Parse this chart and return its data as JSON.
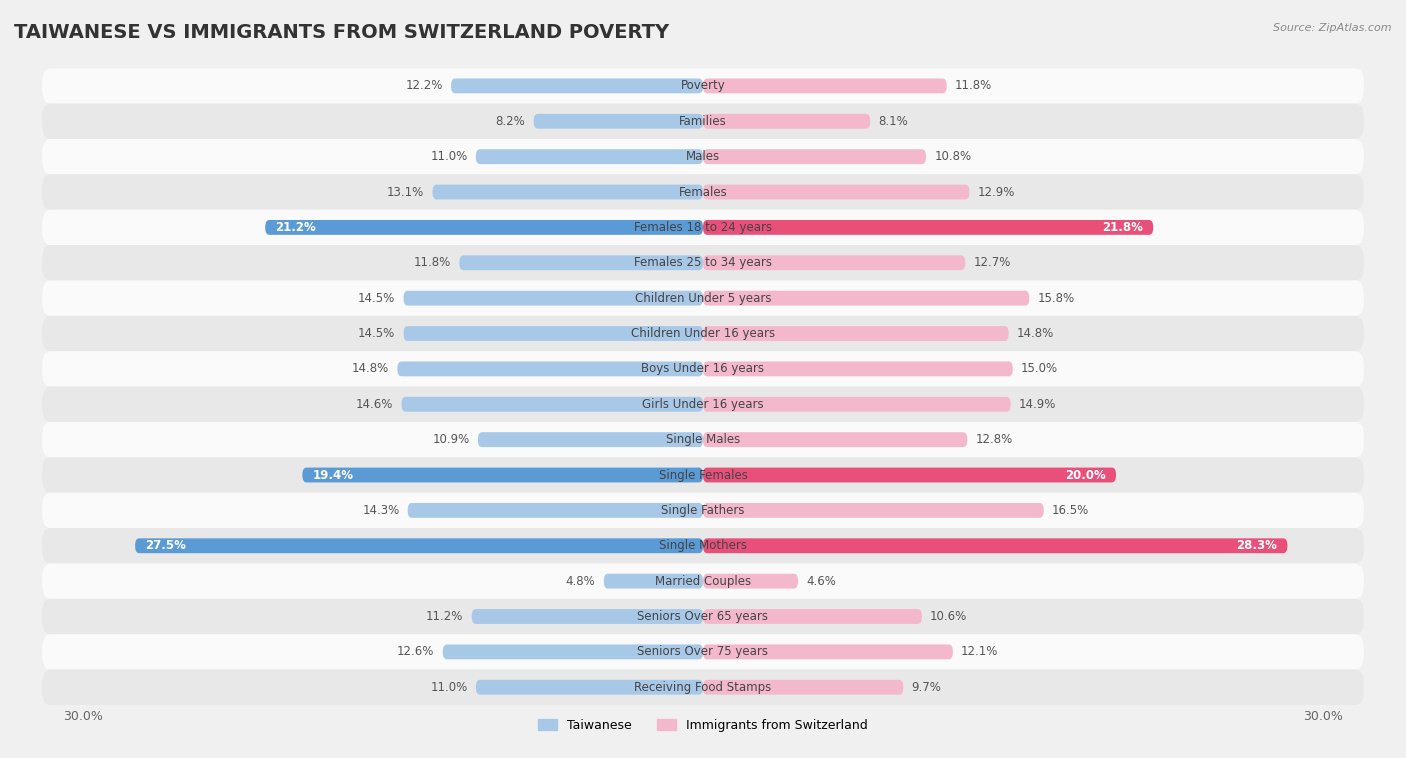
{
  "title": "TAIWANESE VS IMMIGRANTS FROM SWITZERLAND POVERTY",
  "source": "Source: ZipAtlas.com",
  "categories": [
    "Poverty",
    "Families",
    "Males",
    "Females",
    "Females 18 to 24 years",
    "Females 25 to 34 years",
    "Children Under 5 years",
    "Children Under 16 years",
    "Boys Under 16 years",
    "Girls Under 16 years",
    "Single Males",
    "Single Females",
    "Single Fathers",
    "Single Mothers",
    "Married Couples",
    "Seniors Over 65 years",
    "Seniors Over 75 years",
    "Receiving Food Stamps"
  ],
  "taiwanese": [
    12.2,
    8.2,
    11.0,
    13.1,
    21.2,
    11.8,
    14.5,
    14.5,
    14.8,
    14.6,
    10.9,
    19.4,
    14.3,
    27.5,
    4.8,
    11.2,
    12.6,
    11.0
  ],
  "immigrants": [
    11.8,
    8.1,
    10.8,
    12.9,
    21.8,
    12.7,
    15.8,
    14.8,
    15.0,
    14.9,
    12.8,
    20.0,
    16.5,
    28.3,
    4.6,
    10.6,
    12.1,
    9.7
  ],
  "taiwanese_color_normal": "#a8c8e8",
  "immigrants_color_normal": "#f4b8cc",
  "taiwanese_color_highlight": "#5b9bd5",
  "immigrants_color_highlight": "#e8507a",
  "highlight_rows": [
    4,
    11,
    13
  ],
  "background_color": "#f0f0f0",
  "row_bg_even": "#fafafa",
  "row_bg_odd": "#e8e8e8",
  "bar_height": 0.42,
  "legend_taiwanese": "Taiwanese",
  "legend_immigrants": "Immigrants from Switzerland",
  "title_fontsize": 14,
  "label_fontsize": 8.5,
  "value_fontsize": 8.5,
  "tick_fontsize": 9,
  "xlim_max": 32
}
